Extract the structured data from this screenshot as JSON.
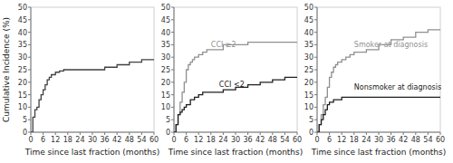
{
  "chart_data": [
    {
      "type": "line",
      "line_style": "step",
      "xlabel": "Time since last fraction (months)",
      "ylabel": "Cumulative Incidence (%)",
      "xlim": [
        0,
        60
      ],
      "ylim": [
        0,
        50
      ],
      "xticks": [
        0,
        6,
        12,
        18,
        24,
        30,
        36,
        42,
        48,
        54,
        60
      ],
      "yticks": [
        0,
        5,
        10,
        15,
        20,
        25,
        30,
        35,
        40,
        45,
        50
      ],
      "series": [
        {
          "color": "#404040",
          "x": [
            0,
            1,
            2,
            3,
            4,
            5,
            6,
            7,
            8,
            9,
            10,
            12,
            14,
            16,
            18,
            20,
            24,
            30,
            36,
            42,
            48,
            54,
            60
          ],
          "values": [
            0,
            6,
            9,
            10,
            13,
            15,
            17,
            19,
            21,
            22,
            23,
            24,
            24.5,
            25,
            25,
            25,
            25,
            25,
            26,
            27,
            28,
            29,
            29
          ]
        }
      ]
    },
    {
      "type": "line",
      "line_style": "step",
      "xlabel": "Time since last fraction (months)",
      "xlim": [
        0,
        60
      ],
      "ylim": [
        0,
        50
      ],
      "xticks": [
        0,
        6,
        12,
        18,
        24,
        30,
        36,
        42,
        48,
        54,
        60
      ],
      "yticks": [
        0,
        5,
        10,
        15,
        20,
        25,
        30,
        35,
        40,
        45,
        50
      ],
      "series": [
        {
          "color": "#909090",
          "x": [
            0,
            1,
            2,
            3,
            4,
            5,
            6,
            7,
            8,
            9,
            10,
            12,
            14,
            16,
            18,
            20,
            24,
            30,
            36,
            42,
            48,
            54,
            60
          ],
          "values": [
            0,
            3,
            7,
            12,
            16,
            20,
            25,
            27,
            28,
            29,
            30,
            31,
            32,
            33,
            33,
            33,
            35,
            35,
            36,
            36,
            36,
            36,
            36
          ]
        },
        {
          "color": "#202020",
          "x": [
            0,
            1,
            2,
            3,
            4,
            5,
            6,
            8,
            10,
            12,
            14,
            16,
            18,
            20,
            24,
            30,
            36,
            42,
            48,
            54,
            60
          ],
          "values": [
            0,
            3,
            7,
            8,
            9,
            10,
            11,
            13,
            14,
            15,
            16,
            16,
            16,
            16,
            17,
            18,
            19,
            20,
            21,
            22,
            22
          ]
        }
      ],
      "annotations": [
        {
          "text": "CCI ≥2",
          "x": 18,
          "y": 34,
          "color": "#909090"
        },
        {
          "text": "CCI <2",
          "x": 22,
          "y": 18,
          "color": "#202020"
        }
      ]
    },
    {
      "type": "line",
      "line_style": "step",
      "xlabel": "Time since last fraction (months)",
      "xlim": [
        0,
        60
      ],
      "ylim": [
        0,
        50
      ],
      "xticks": [
        0,
        6,
        12,
        18,
        24,
        30,
        36,
        42,
        48,
        54,
        60
      ],
      "yticks": [
        0,
        5,
        10,
        15,
        20,
        25,
        30,
        35,
        40,
        45,
        50
      ],
      "series": [
        {
          "color": "#909090",
          "x": [
            0,
            1,
            2,
            3,
            4,
            5,
            6,
            7,
            8,
            9,
            10,
            12,
            14,
            16,
            18,
            20,
            24,
            30,
            36,
            42,
            48,
            54,
            60
          ],
          "values": [
            0,
            3,
            7,
            11,
            14,
            18,
            22,
            24,
            26,
            27,
            28,
            29,
            30,
            31,
            32,
            32,
            33,
            35,
            37,
            38,
            40,
            41,
            41
          ]
        },
        {
          "color": "#202020",
          "x": [
            0,
            1,
            2,
            3,
            4,
            5,
            6,
            8,
            10,
            12,
            14,
            16,
            18,
            20,
            24,
            30,
            36,
            42,
            48,
            54,
            60
          ],
          "values": [
            0,
            3,
            5,
            7,
            9,
            11,
            12,
            13,
            13,
            14,
            14,
            14,
            14,
            14,
            14,
            14,
            14,
            14,
            14,
            14,
            14
          ]
        }
      ],
      "annotations": [
        {
          "text": "Smoker at diagnosis",
          "x": 18,
          "y": 34,
          "color": "#909090"
        },
        {
          "text": "Nonsmoker at diagnosis",
          "x": 18,
          "y": 17,
          "color": "#202020"
        }
      ]
    }
  ]
}
